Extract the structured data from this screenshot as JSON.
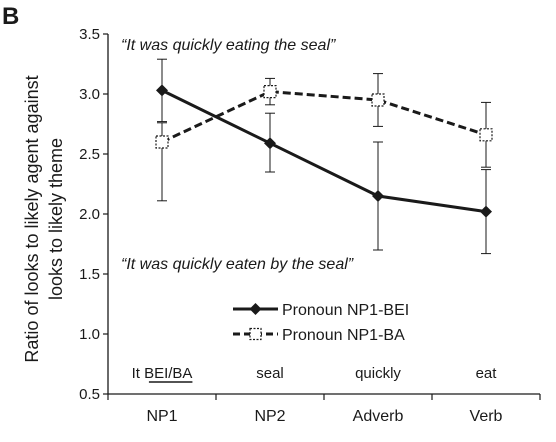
{
  "chart_data": {
    "type": "line",
    "panel_label": "B",
    "ylabel_line1": "Ratio of looks to likely agent against",
    "ylabel_line2": "looks to likely theme",
    "ylim": [
      0.5,
      3.5
    ],
    "yticks": [
      "0.5",
      "1.0",
      "1.5",
      "2.0",
      "2.5",
      "3.0",
      "3.5"
    ],
    "categories": [
      "NP1",
      "NP2",
      "Adverb",
      "Verb"
    ],
    "words": [
      "It BEI/BA",
      "seal",
      "quickly",
      "eat"
    ],
    "grid": false,
    "legend_position": "lower-center",
    "annotations": {
      "top": "“It was quickly eating the seal”",
      "bottom": "“It was quickly eaten by the seal”"
    },
    "series": [
      {
        "name": "Pronoun NP1-BEI",
        "values": [
          3.03,
          2.59,
          2.15,
          2.02
        ],
        "error_low": [
          2.77,
          2.35,
          1.7,
          1.67
        ],
        "error_high": [
          3.29,
          2.84,
          2.6,
          2.37
        ],
        "line_style": "solid",
        "marker": "filled-diamond",
        "color": "#1a1a1a"
      },
      {
        "name": "Pronoun NP1-BA",
        "values": [
          2.6,
          3.02,
          2.95,
          2.66
        ],
        "error_low": [
          2.11,
          2.91,
          2.73,
          2.39
        ],
        "error_high": [
          2.76,
          3.13,
          3.17,
          2.93
        ],
        "line_style": "dashed",
        "marker": "open-square",
        "color": "#1a1a1a"
      }
    ]
  }
}
